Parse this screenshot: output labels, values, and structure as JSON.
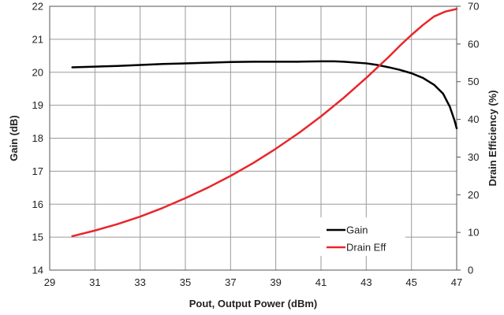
{
  "chart_data": {
    "type": "line",
    "xlabel": "Pout, Output Power (dBm)",
    "ylabel_left": "Gain (dB)",
    "ylabel_right": "Drain Efficiency (%)",
    "xlim": [
      29,
      47
    ],
    "ylim_left": [
      14,
      22
    ],
    "ylim_right": [
      0,
      70
    ],
    "x_ticks": [
      "29",
      "31",
      "33",
      "35",
      "37",
      "39",
      "41",
      "43",
      "45",
      "47"
    ],
    "y_ticks_left": [
      "14",
      "15",
      "16",
      "17",
      "18",
      "19",
      "20",
      "21",
      "22"
    ],
    "y_ticks_right": [
      "0",
      "10",
      "20",
      "30",
      "40",
      "50",
      "60",
      "70"
    ],
    "grid": true,
    "legend": "center-right",
    "series": [
      {
        "name": "Gain",
        "axis": "left",
        "color": "#000000",
        "points": [
          [
            30,
            20.15
          ],
          [
            31,
            20.17
          ],
          [
            32,
            20.19
          ],
          [
            33,
            20.22
          ],
          [
            34,
            20.25
          ],
          [
            35,
            20.27
          ],
          [
            36,
            20.29
          ],
          [
            37,
            20.31
          ],
          [
            38,
            20.32
          ],
          [
            39,
            20.32
          ],
          [
            40,
            20.32
          ],
          [
            41,
            20.33
          ],
          [
            41.6,
            20.33
          ],
          [
            42,
            20.32
          ],
          [
            43,
            20.27
          ],
          [
            43.5,
            20.22
          ],
          [
            44,
            20.15
          ],
          [
            44.5,
            20.07
          ],
          [
            45,
            19.97
          ],
          [
            45.5,
            19.83
          ],
          [
            46,
            19.62
          ],
          [
            46.4,
            19.35
          ],
          [
            46.7,
            18.95
          ],
          [
            46.9,
            18.55
          ],
          [
            47,
            18.3
          ]
        ]
      },
      {
        "name": "Drain Eff",
        "axis": "right",
        "color": "#e8262b",
        "points": [
          [
            30,
            9
          ],
          [
            31,
            10.5
          ],
          [
            32,
            12.2
          ],
          [
            33,
            14.2
          ],
          [
            34,
            16.5
          ],
          [
            35,
            19.1
          ],
          [
            36,
            21.9
          ],
          [
            37,
            25
          ],
          [
            38,
            28.4
          ],
          [
            39,
            32.2
          ],
          [
            40,
            36.3
          ],
          [
            41,
            40.8
          ],
          [
            42,
            45.7
          ],
          [
            43,
            51
          ],
          [
            44,
            56.6
          ],
          [
            44.5,
            59.6
          ],
          [
            45,
            62.4
          ],
          [
            45.5,
            65
          ],
          [
            46,
            67.3
          ],
          [
            46.5,
            68.6
          ],
          [
            47,
            69.3
          ]
        ]
      }
    ]
  }
}
